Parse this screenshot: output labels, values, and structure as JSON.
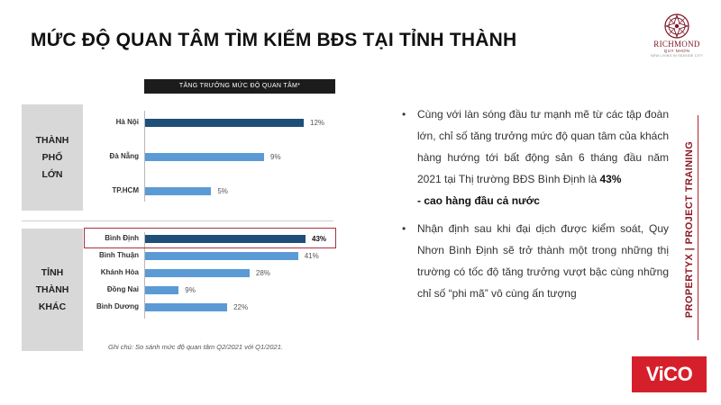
{
  "page": {
    "title": "MỨC ĐỘ QUAN TÂM TÌM KIẾM BĐS TẠI TỈNH THÀNH"
  },
  "logo": {
    "icon": "richmond-ornament-logo",
    "name": "RICHMOND",
    "sub": "QUY NHƠN",
    "tagline": "NEW LIVING IN SEASIDE CITY",
    "color": "#7a1522"
  },
  "chart_data": {
    "type": "bar",
    "orientation": "horizontal",
    "header": "TĂNG TRƯỞNG MỨC ĐỘ QUAN TÂM*",
    "groups": [
      {
        "label_lines": [
          "THÀNH",
          "PHỐ",
          "LỚN"
        ],
        "color": "#1f4e79",
        "categories": [
          "Hà Nội",
          "Đà Nẵng",
          "TP.HCM"
        ],
        "values": [
          12,
          9,
          5
        ],
        "value_labels": [
          "12%",
          "9%",
          "5%"
        ],
        "colors": [
          "#1f4e79",
          "#5b9bd5",
          "#5b9bd5"
        ],
        "xlim": [
          0,
          14
        ]
      },
      {
        "label_lines": [
          "TỈNH",
          "THÀNH",
          "KHÁC"
        ],
        "categories": [
          "Bình Định",
          "Bình Thuận",
          "Khánh Hòa",
          "Đồng Nai",
          "Bình Dương"
        ],
        "values": [
          43,
          41,
          28,
          9,
          22
        ],
        "value_labels": [
          "43%",
          "41%",
          "28%",
          "9%",
          "22%"
        ],
        "colors": [
          "#1f4e79",
          "#5b9bd5",
          "#5b9bd5",
          "#5b9bd5",
          "#5b9bd5"
        ],
        "highlight": "Bình Định",
        "xlim": [
          0,
          50
        ]
      }
    ],
    "note": "Ghi chú: So sánh mức độ quan tâm Q2/2021 với Q1/2021.",
    "grid": false,
    "legend": "none",
    "highlight_color": "#a8323c"
  },
  "bullets": [
    {
      "text": "Cùng với làn sóng đầu tư mạnh mẽ từ các tập đoàn lớn, chỉ số tăng trưởng mức độ quan tâm của khách hàng hướng tới bất động sản 6 tháng đầu năm 2021 tại Thị trường BĐS Bình Định là ",
      "strong1": "43%",
      "strong2": "- cao hàng đầu cả nước"
    },
    {
      "text": "Nhận định sau khi đại dịch được kiểm soát, Quy Nhơn Bình Định sẽ trở thành một trong những thị trường có tốc độ tăng trưởng vượt bậc cùng những chỉ số “phi mã” vô cùng ấn tượng"
    }
  ],
  "side": {
    "text": "PROPERTYX | PROJECT TRAINING",
    "color": "#8e1b26"
  },
  "brand": {
    "text": "ViCO",
    "color": "#d5202c"
  }
}
